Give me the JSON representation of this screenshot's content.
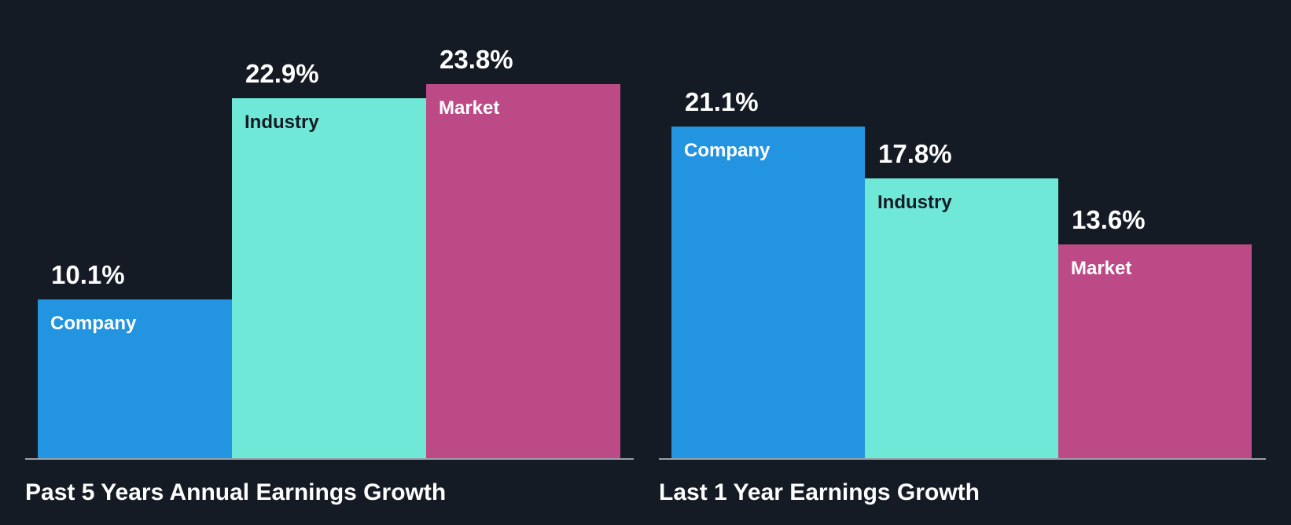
{
  "chart_data": [
    {
      "type": "bar",
      "title": "Past 5 Years Annual Earnings Growth",
      "categories": [
        "Company",
        "Industry",
        "Market"
      ],
      "values": [
        10.1,
        22.9,
        23.8
      ],
      "value_labels": [
        "10.1%",
        "22.9%",
        "23.8%"
      ],
      "colors": [
        "#2394df",
        "#70e8d8",
        "#bc4a86"
      ],
      "label_colors": [
        "#ffffff",
        "#151b24",
        "#ffffff"
      ],
      "unit": "%",
      "xlabel": "",
      "ylabel": "",
      "ylim": [
        0,
        25
      ],
      "grid": false,
      "legend": "none"
    },
    {
      "type": "bar",
      "title": "Last 1 Year Earnings Growth",
      "categories": [
        "Company",
        "Industry",
        "Market"
      ],
      "values": [
        21.1,
        17.8,
        13.6
      ],
      "value_labels": [
        "21.1%",
        "17.8%",
        "13.6%"
      ],
      "colors": [
        "#2394df",
        "#70e8d8",
        "#bc4a86"
      ],
      "label_colors": [
        "#ffffff",
        "#151b24",
        "#ffffff"
      ],
      "unit": "%",
      "xlabel": "",
      "ylabel": "",
      "ylim": [
        0,
        25
      ],
      "grid": false,
      "legend": "none"
    }
  ]
}
